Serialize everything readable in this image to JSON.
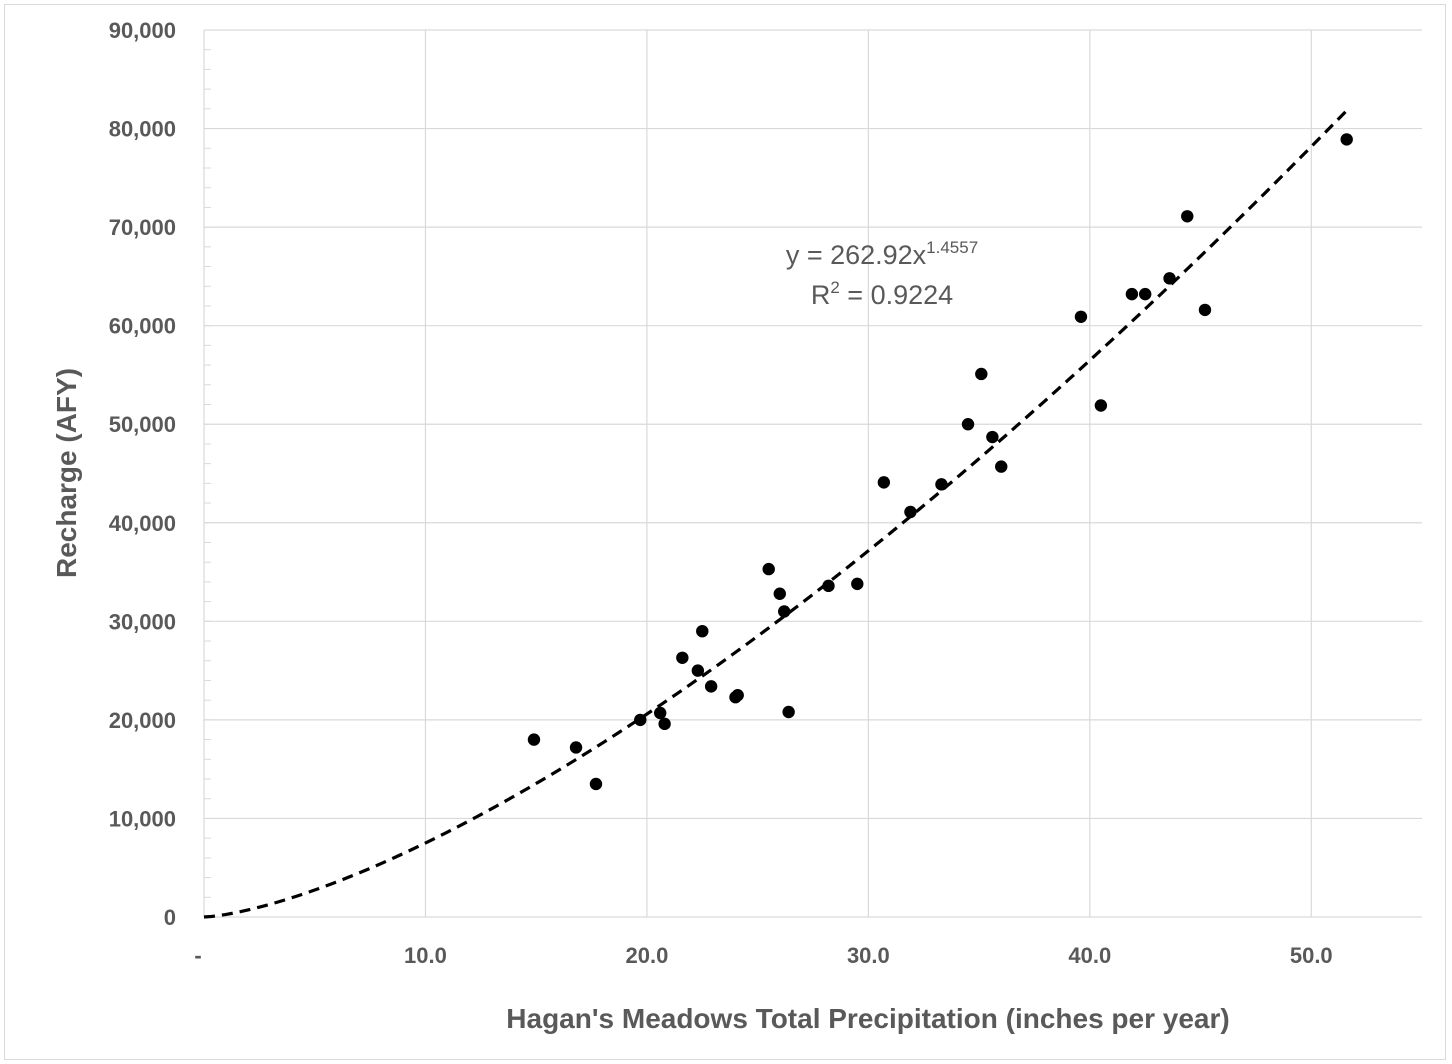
{
  "chart_data": {
    "type": "scatter",
    "xlabel": "Hagan's Meadows Total Precipitation (inches per year)",
    "ylabel": "Recharge (AFY)",
    "xlim": [
      0,
      55
    ],
    "ylim": [
      0,
      90000
    ],
    "x_ticks": [
      {
        "value": 0,
        "label": "-"
      },
      {
        "value": 10,
        "label": "10.0"
      },
      {
        "value": 20,
        "label": "20.0"
      },
      {
        "value": 30,
        "label": "30.0"
      },
      {
        "value": 40,
        "label": "40.0"
      },
      {
        "value": 50,
        "label": "50.0"
      }
    ],
    "y_ticks": [
      {
        "value": 0,
        "label": "0"
      },
      {
        "value": 10000,
        "label": "10,000"
      },
      {
        "value": 20000,
        "label": "20,000"
      },
      {
        "value": 30000,
        "label": "30,000"
      },
      {
        "value": 40000,
        "label": "40,000"
      },
      {
        "value": 50000,
        "label": "50,000"
      },
      {
        "value": 60000,
        "label": "60,000"
      },
      {
        "value": 70000,
        "label": "70,000"
      },
      {
        "value": 80000,
        "label": "80,000"
      },
      {
        "value": 90000,
        "label": "90,000"
      }
    ],
    "grid": true,
    "points": [
      {
        "x": 14.9,
        "y": 18000
      },
      {
        "x": 16.8,
        "y": 17200
      },
      {
        "x": 17.7,
        "y": 13500
      },
      {
        "x": 19.7,
        "y": 20000
      },
      {
        "x": 20.6,
        "y": 20700
      },
      {
        "x": 20.8,
        "y": 19600
      },
      {
        "x": 21.6,
        "y": 26300
      },
      {
        "x": 22.3,
        "y": 25000
      },
      {
        "x": 22.5,
        "y": 29000
      },
      {
        "x": 22.9,
        "y": 23400
      },
      {
        "x": 24.0,
        "y": 22300
      },
      {
        "x": 24.1,
        "y": 22500
      },
      {
        "x": 25.5,
        "y": 35300
      },
      {
        "x": 26.0,
        "y": 32800
      },
      {
        "x": 26.2,
        "y": 31000
      },
      {
        "x": 26.4,
        "y": 20800
      },
      {
        "x": 28.2,
        "y": 33600
      },
      {
        "x": 29.5,
        "y": 33800
      },
      {
        "x": 30.7,
        "y": 44100
      },
      {
        "x": 31.9,
        "y": 41100
      },
      {
        "x": 33.3,
        "y": 43900
      },
      {
        "x": 34.5,
        "y": 50000
      },
      {
        "x": 35.1,
        "y": 55100
      },
      {
        "x": 35.6,
        "y": 48700
      },
      {
        "x": 36.0,
        "y": 45700
      },
      {
        "x": 39.6,
        "y": 60900
      },
      {
        "x": 40.5,
        "y": 51900
      },
      {
        "x": 41.9,
        "y": 63200
      },
      {
        "x": 42.5,
        "y": 63200
      },
      {
        "x": 43.6,
        "y": 64800
      },
      {
        "x": 44.4,
        "y": 71100
      },
      {
        "x": 45.2,
        "y": 61600
      },
      {
        "x": 51.6,
        "y": 78900
      }
    ],
    "trendline": {
      "type": "power",
      "coefficient": 262.92,
      "exponent": 1.4557,
      "x_range": [
        0,
        51.6
      ],
      "style": "dashed"
    },
    "annotation": {
      "equation_prefix": "y = 262.92x",
      "equation_exponent": "1.4557",
      "r2_prefix": "R",
      "r2_exponent": "2",
      "r2_suffix": " = 0.9224"
    },
    "colors": {
      "points": "#000000",
      "trendline": "#000000",
      "grid": "#d9d9d9",
      "text": "#595959"
    }
  }
}
